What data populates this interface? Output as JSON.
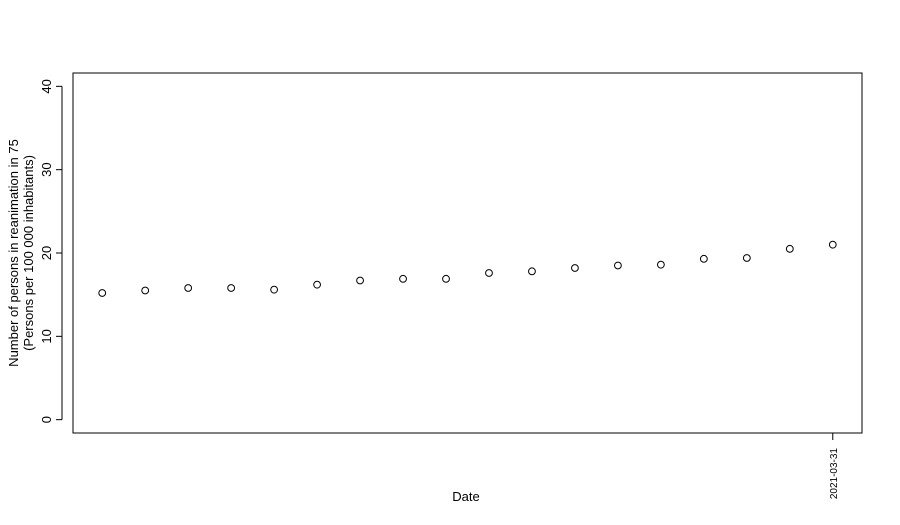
{
  "chart_data": {
    "type": "scatter",
    "x_label": "Date",
    "y_label": [
      "Number of persons in reanimation in 75",
      "(Persons per 100 000 inhabitants)"
    ],
    "categories": [
      null,
      null,
      null,
      null,
      null,
      null,
      null,
      null,
      null,
      null,
      null,
      null,
      null,
      null,
      null,
      null,
      null,
      "2021-03-31"
    ],
    "values": [
      15.2,
      15.5,
      15.8,
      15.8,
      15.6,
      16.2,
      16.7,
      16.9,
      16.9,
      17.6,
      17.8,
      18.2,
      18.5,
      18.6,
      19.3,
      19.4,
      20.5,
      21.0
    ],
    "color": "#000000",
    "ylim": [
      -1.6,
      41.6
    ],
    "yticks": [
      0,
      10,
      20,
      30,
      40
    ]
  }
}
